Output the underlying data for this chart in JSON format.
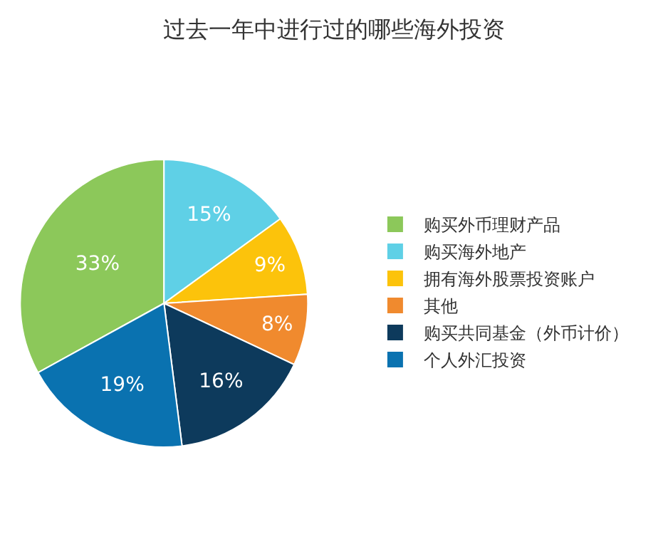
{
  "chart_data": {
    "type": "pie",
    "title": "过去一年中进行过的哪些海外投资",
    "categories": [
      "购买外币理财产品",
      "购买海外地产",
      "拥有海外股票投资账户",
      "其他",
      "购买共同基金（外币计价）",
      "个人外汇投资"
    ],
    "values": [
      33,
      15,
      9,
      8,
      16,
      19
    ],
    "colors": [
      "#8cc85a",
      "#5fd0e6",
      "#fcc30b",
      "#f08a2e",
      "#0d3a5c",
      "#0a72b0"
    ],
    "value_labels": [
      "33%",
      "15%",
      "9%",
      "8%",
      "16%",
      "19%"
    ],
    "legend": "right"
  }
}
